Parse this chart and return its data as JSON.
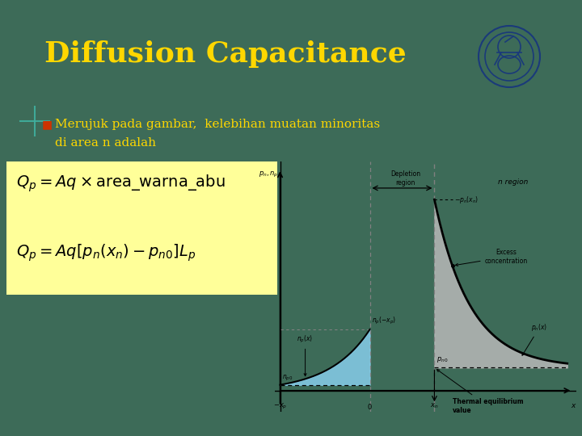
{
  "title": "Diffusion Capacitance",
  "title_color": "#FFD700",
  "title_fontsize": 26,
  "bg_color": "#3D6B58",
  "bullet_text_line1": "Merujuk pada gambar,  kelebihan muatan minoritas",
  "bullet_text_line2": "di area n adalah",
  "bullet_color": "#CC3300",
  "bullet_text_color": "#FFD700",
  "formula_bg": "#FFFF99",
  "graph_bg": "#FFFFFF",
  "depletion_label": "Depletion\nregion",
  "excess_label": "Excess\nconcentration",
  "thermal_label": "Thermal equilibrium\nvalue",
  "n_region_label": "n region",
  "axis_y_label": "$p_n, n_p$",
  "blue_fill": "#87CEEB",
  "gray_fill": "#B8B8B8",
  "cross_color": "#40B0A0",
  "logo_color": "#1A3A7A"
}
